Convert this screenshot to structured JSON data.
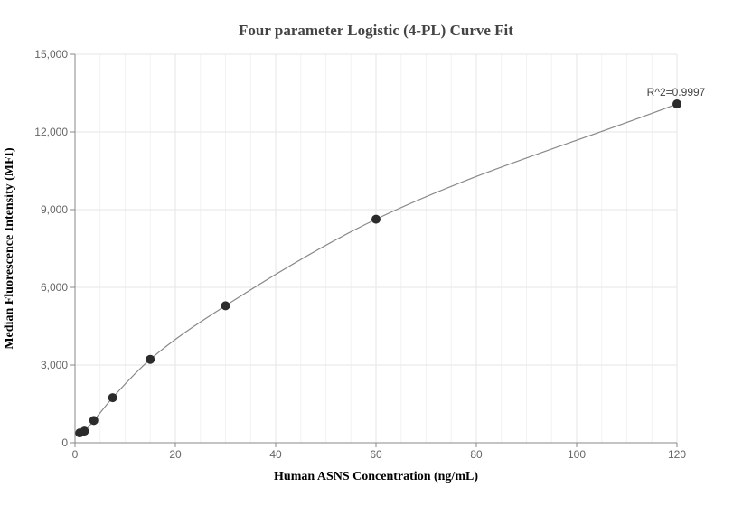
{
  "chart_data": {
    "type": "scatter",
    "title": "Four parameter Logistic (4-PL) Curve Fit",
    "xlabel": "Human ASNS Concentration (ng/mL)",
    "ylabel": "Median Fluorescence Intensity (MFI)",
    "xlim": [
      0,
      120
    ],
    "ylim": [
      0,
      15000
    ],
    "x_ticks": [
      0,
      20,
      40,
      60,
      80,
      100,
      120
    ],
    "y_ticks": [
      0,
      3000,
      6000,
      9000,
      12000,
      15000
    ],
    "x_tick_labels": [
      "0",
      "20",
      "40",
      "60",
      "80",
      "100",
      "120"
    ],
    "y_tick_labels": [
      "0",
      "3,000",
      "6,000",
      "9,000",
      "12,000",
      "15,000"
    ],
    "grid": true,
    "series": [
      {
        "x": [
          0.94,
          1.88,
          3.75,
          7.5,
          15,
          30,
          60,
          120
        ],
        "y": [
          380,
          450,
          860,
          1740,
          3220,
          5290,
          8630,
          13080
        ]
      }
    ],
    "annotation": "R^2=0.9997",
    "colors": {
      "points": "#2b2b2b",
      "curve": "#888888",
      "grid": "#e6e6e6"
    }
  }
}
